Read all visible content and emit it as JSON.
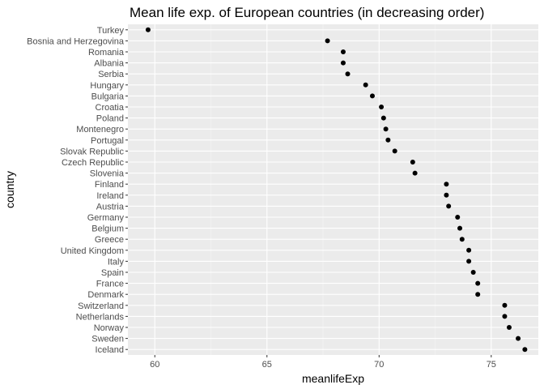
{
  "chart_data": {
    "type": "scatter",
    "title": "Mean life exp. of European countries (in decreasing order)",
    "xlabel": "meanlifeExp",
    "ylabel": "country",
    "xlim": [
      58.8,
      77.1
    ],
    "xticks": [
      60,
      65,
      70,
      75
    ],
    "grid": true,
    "background": "#ebebeb",
    "point_color": "#000000",
    "categories": [
      "Turkey",
      "Bosnia and Herzegovina",
      "Romania",
      "Albania",
      "Serbia",
      "Hungary",
      "Bulgaria",
      "Croatia",
      "Poland",
      "Montenegro",
      "Portugal",
      "Slovak Republic",
      "Czech Republic",
      "Slovenia",
      "Finland",
      "Ireland",
      "Austria",
      "Germany",
      "Belgium",
      "Greece",
      "United Kingdom",
      "Italy",
      "Spain",
      "France",
      "Denmark",
      "Switzerland",
      "Netherlands",
      "Norway",
      "Sweden",
      "Iceland"
    ],
    "values": [
      59.7,
      67.7,
      68.4,
      68.4,
      68.6,
      69.4,
      69.7,
      70.1,
      70.2,
      70.3,
      70.4,
      70.7,
      71.5,
      71.6,
      73.0,
      73.0,
      73.1,
      73.5,
      73.6,
      73.7,
      74.0,
      74.0,
      74.2,
      74.4,
      74.4,
      75.6,
      75.6,
      75.8,
      76.2,
      76.5
    ]
  }
}
